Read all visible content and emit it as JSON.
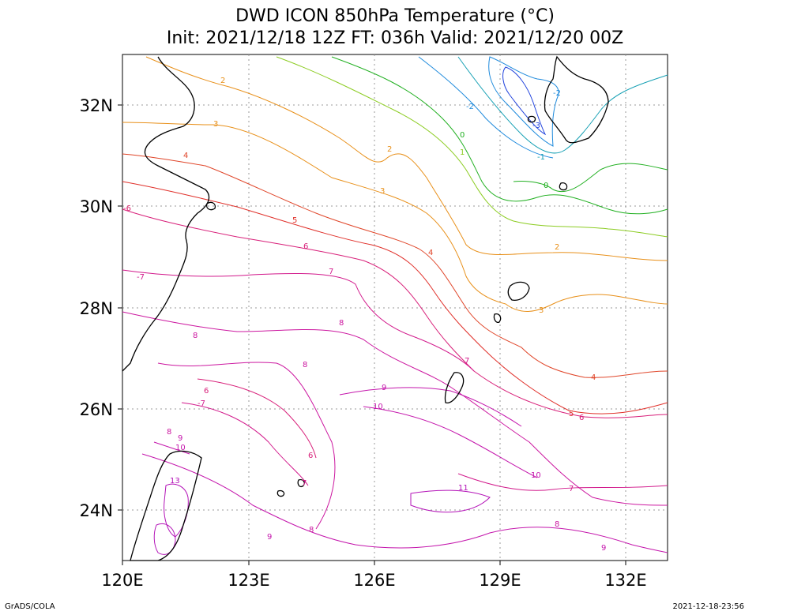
{
  "title": {
    "line1": "DWD ICON 850hPa Temperature (°C)",
    "line2": "Init: 2021/12/18 12Z  FT: 036h  Valid: 2021/12/20 00Z"
  },
  "footer": {
    "left": "GrADS/COLA",
    "right": "2021-12-18-23:56"
  },
  "map": {
    "lon_range": [
      120,
      133
    ],
    "lat_range": [
      23,
      33
    ],
    "lon_ticks": [
      "120E",
      "123E",
      "126E",
      "129E",
      "132E"
    ],
    "lat_ticks": [
      "32N",
      "30N",
      "28N",
      "26N",
      "24N"
    ],
    "grid": "dotted"
  },
  "contour_labels": [
    {
      "text": "2",
      "color": "#e8901a"
    },
    {
      "text": "3",
      "color": "#e8901a"
    },
    {
      "text": "4",
      "color": "#e0462a"
    },
    {
      "text": "-6",
      "color": "#d81e6a"
    },
    {
      "text": "5",
      "color": "#e0302a"
    },
    {
      "text": "6",
      "color": "#d8207a"
    },
    {
      "text": "-7",
      "color": "#d21a8c"
    },
    {
      "text": "7",
      "color": "#d21a8c"
    },
    {
      "text": "8",
      "color": "#cc18a0"
    },
    {
      "text": "9",
      "color": "#c416ac"
    },
    {
      "text": "10",
      "color": "#c416ac"
    },
    {
      "text": "11",
      "color": "#b414b8"
    },
    {
      "text": "13",
      "color": "#b414b8"
    },
    {
      "text": "-1",
      "color": "#16a0b4"
    },
    {
      "text": "-2",
      "color": "#1e8adc"
    },
    {
      "text": "-3",
      "color": "#2244dd"
    },
    {
      "text": "0",
      "color": "#22b022"
    },
    {
      "text": "1",
      "color": "#8ccc22"
    },
    {
      "text": "-6",
      "color": "#d81e6a"
    }
  ]
}
